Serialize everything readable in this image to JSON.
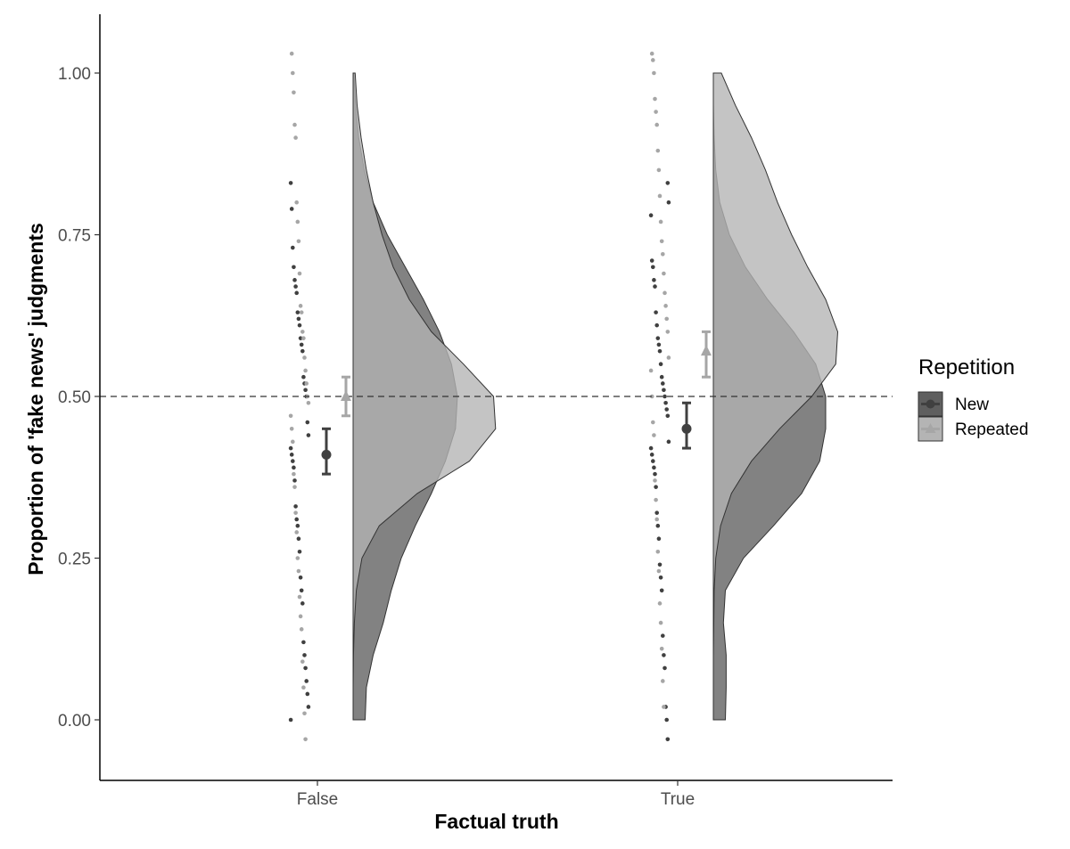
{
  "chart_data": {
    "type": "raincloud",
    "title": "",
    "xlabel": "Factual truth",
    "ylabel": "Proportion of 'fake news' judgments",
    "categories": [
      "False",
      "True"
    ],
    "ylim": [
      -0.09,
      1.09
    ],
    "yticks": [
      0.0,
      0.25,
      0.5,
      0.75,
      1.0
    ],
    "ytick_labels": [
      "0.00",
      "0.25",
      "0.50",
      "0.75",
      "1.00"
    ],
    "reference_line": {
      "y": 0.5,
      "style": "dashed"
    },
    "grid": false,
    "legend": {
      "title": "Repetition",
      "position": "right",
      "entries": [
        {
          "name": "New",
          "marker": "circle",
          "color": "#404040"
        },
        {
          "name": "Repeated",
          "marker": "triangle",
          "color": "#a6a6a6"
        }
      ]
    },
    "series": [
      {
        "name": "New",
        "color": "#404040",
        "fill": "#5f5f5f",
        "means": [
          0.41,
          0.45
        ],
        "ci_low": [
          0.38,
          0.42
        ],
        "ci_high": [
          0.45,
          0.49
        ],
        "density": [
          {
            "y": [
              0.0,
              0.05,
              0.1,
              0.15,
              0.2,
              0.25,
              0.3,
              0.35,
              0.4,
              0.45,
              0.5,
              0.55,
              0.6,
              0.65,
              0.7,
              0.75,
              0.8,
              0.85,
              0.9,
              0.95,
              1.0
            ],
            "d": [
              0.3,
              0.33,
              0.5,
              0.75,
              0.95,
              1.2,
              1.55,
              1.95,
              2.3,
              2.55,
              2.6,
              2.45,
              2.15,
              1.75,
              1.3,
              0.85,
              0.5,
              0.28,
              0.14,
              0.06,
              0.02
            ]
          },
          {
            "y": [
              0.0,
              0.05,
              0.1,
              0.15,
              0.2,
              0.25,
              0.3,
              0.35,
              0.4,
              0.45,
              0.5,
              0.55,
              0.6,
              0.65,
              0.7,
              0.75,
              0.8,
              0.85,
              0.9,
              0.95,
              1.0
            ],
            "d": [
              0.3,
              0.32,
              0.32,
              0.25,
              0.3,
              0.75,
              1.5,
              2.2,
              2.65,
              2.8,
              2.8,
              2.55,
              2.0,
              1.35,
              0.8,
              0.4,
              0.16,
              0.06,
              0.02,
              0.0,
              0.0
            ]
          }
        ],
        "points": [
          [
            0.0,
            0.02,
            0.04,
            0.06,
            0.08,
            0.1,
            0.12,
            0.18,
            0.2,
            0.22,
            0.26,
            0.28,
            0.3,
            0.31,
            0.33,
            0.37,
            0.39,
            0.4,
            0.41,
            0.42,
            0.44,
            0.46,
            0.5,
            0.51,
            0.52,
            0.53,
            0.57,
            0.58,
            0.59,
            0.61,
            0.62,
            0.63,
            0.66,
            0.67,
            0.68,
            0.7,
            0.73,
            0.79,
            0.83
          ],
          [
            -0.03,
            0.0,
            0.02,
            0.08,
            0.1,
            0.13,
            0.2,
            0.22,
            0.24,
            0.28,
            0.3,
            0.32,
            0.36,
            0.38,
            0.39,
            0.4,
            0.41,
            0.42,
            0.43,
            0.47,
            0.48,
            0.49,
            0.5,
            0.51,
            0.52,
            0.53,
            0.55,
            0.57,
            0.58,
            0.59,
            0.61,
            0.63,
            0.67,
            0.68,
            0.7,
            0.71,
            0.78,
            0.8,
            0.83
          ]
        ]
      },
      {
        "name": "Repeated",
        "color": "#a6a6a6",
        "fill": "#b4b4b4",
        "means": [
          0.5,
          0.57
        ],
        "ci_low": [
          0.47,
          0.53
        ],
        "ci_high": [
          0.53,
          0.6
        ],
        "density": [
          {
            "y": [
              0.0,
              0.05,
              0.1,
              0.15,
              0.2,
              0.25,
              0.3,
              0.35,
              0.4,
              0.45,
              0.5,
              0.55,
              0.6,
              0.65,
              0.7,
              0.75,
              0.8,
              0.85,
              0.9,
              0.95,
              1.0
            ],
            "d": [
              0.0,
              0.0,
              0.01,
              0.03,
              0.08,
              0.22,
              0.65,
              1.6,
              2.9,
              3.55,
              3.5,
              2.75,
              1.95,
              1.4,
              1.0,
              0.72,
              0.5,
              0.33,
              0.2,
              0.1,
              0.05
            ]
          },
          {
            "y": [
              0.0,
              0.05,
              0.1,
              0.15,
              0.2,
              0.25,
              0.3,
              0.35,
              0.4,
              0.45,
              0.5,
              0.55,
              0.6,
              0.65,
              0.7,
              0.75,
              0.8,
              0.85,
              0.9,
              0.95,
              1.0
            ],
            "d": [
              0.0,
              0.0,
              0.0,
              0.01,
              0.02,
              0.06,
              0.18,
              0.45,
              0.95,
              1.65,
              2.45,
              3.05,
              3.1,
              2.8,
              2.35,
              1.95,
              1.6,
              1.3,
              0.95,
              0.55,
              0.2
            ]
          }
        ],
        "points": [
          [
            -0.03,
            0.01,
            0.05,
            0.09,
            0.14,
            0.16,
            0.19,
            0.23,
            0.25,
            0.29,
            0.32,
            0.36,
            0.38,
            0.43,
            0.45,
            0.47,
            0.49,
            0.5,
            0.52,
            0.54,
            0.56,
            0.59,
            0.6,
            0.63,
            0.64,
            0.69,
            0.74,
            0.77,
            0.8,
            0.9,
            0.92,
            0.97,
            1.0,
            1.03
          ],
          [
            0.02,
            0.06,
            0.11,
            0.15,
            0.18,
            0.23,
            0.26,
            0.31,
            0.34,
            0.37,
            0.44,
            0.46,
            0.5,
            0.54,
            0.56,
            0.6,
            0.62,
            0.64,
            0.66,
            0.69,
            0.72,
            0.74,
            0.77,
            0.81,
            0.85,
            0.88,
            0.92,
            0.94,
            0.96,
            1.0,
            1.02,
            1.03
          ]
        ]
      }
    ]
  }
}
